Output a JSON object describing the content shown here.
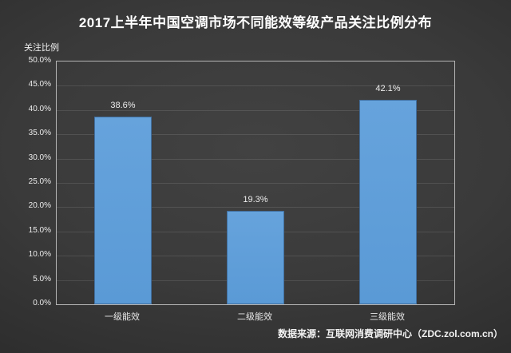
{
  "chart_data": {
    "type": "bar",
    "title": "2017上半年中国空调市场不同能效等级产品关注比例分布",
    "ylabel": "关注比例",
    "xlabel": "",
    "categories": [
      "一级能效",
      "二级能效",
      "三级能效"
    ],
    "values": [
      38.6,
      19.3,
      42.1
    ],
    "value_labels": [
      "38.6%",
      "19.3%",
      "42.1%"
    ],
    "ylim": [
      0,
      50
    ],
    "yticks": {
      "values": [
        0,
        5,
        10,
        15,
        20,
        25,
        30,
        35,
        40,
        45,
        50
      ],
      "labels": [
        "0.0%",
        "5.0%",
        "10.0%",
        "15.0%",
        "20.0%",
        "25.0%",
        "30.0%",
        "35.0%",
        "40.0%",
        "45.0%",
        "50.0%"
      ]
    },
    "grid": true,
    "legend": "none",
    "bar_color": "#5c9cd9",
    "bar_border_color": "#416f9f",
    "background_color": "#333333",
    "plot_border_color": "#b5b5b5"
  },
  "footer": {
    "source": "数据来源：互联网消费调研中心（ZDC.zol.com.cn）"
  }
}
